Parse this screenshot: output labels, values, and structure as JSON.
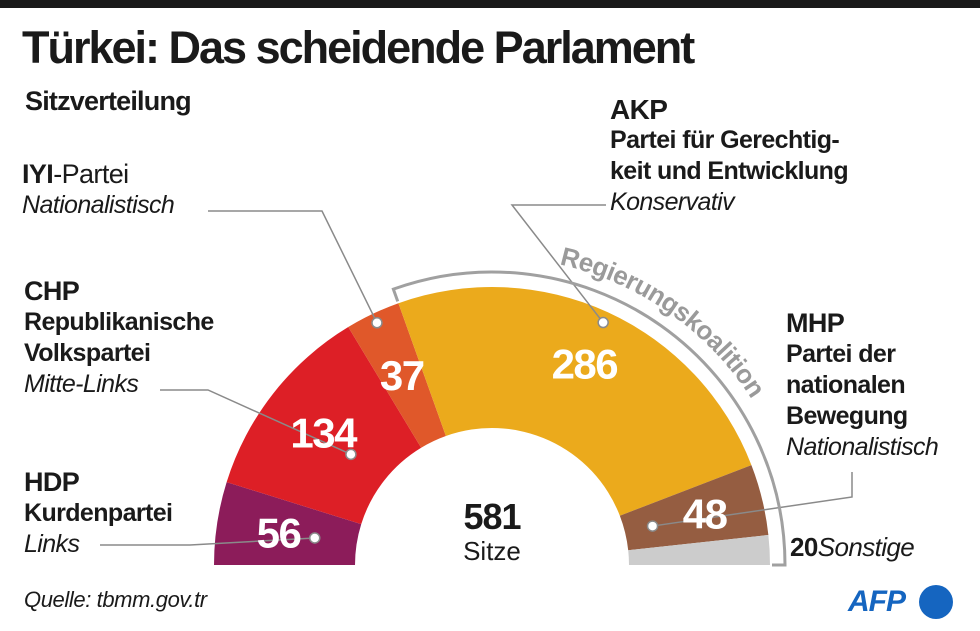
{
  "title": "Türkei: Das scheidende Parlament",
  "subtitle": "Sitzverteilung",
  "colors": {
    "HDP": "#8c1c5a",
    "CHP": "#dd1f26",
    "IYI": "#e0582a",
    "AKP": "#ebaa1c",
    "MHP": "#955d41",
    "Sonstige": "#cccccc",
    "leader": "#8a8a8a",
    "afp": "#1565c0"
  },
  "total": {
    "value": "581",
    "label": "Sitze"
  },
  "coalition_label": "Regierungskoalition",
  "parties": {
    "AKP": {
      "abbr": "AKP",
      "name_line1": "Partei für Gerechtig-",
      "name_line2": "keit und Entwicklung",
      "orientation": "Konservativ"
    },
    "IYI": {
      "abbr": "IYI",
      "name": "-Partei",
      "orientation": "Nationalistisch"
    },
    "CHP": {
      "abbr": "CHP",
      "name_line1": "Republikanische",
      "name_line2": "Volkspartei",
      "orientation": "Mitte-Links"
    },
    "HDP": {
      "abbr": "HDP",
      "name": "Kurdenpartei",
      "orientation": "Links"
    },
    "MHP": {
      "abbr": "MHP",
      "name_line1": "Partei der",
      "name_line2": "nationalen",
      "name_line3": "Bewegung",
      "orientation": "Nationalistisch"
    },
    "Sonstige": {
      "value": "20",
      "name": "Sonstige"
    }
  },
  "chart_data": {
    "type": "pie",
    "title": "Türkei: Das scheidende Parlament",
    "subtitle": "Sitzverteilung",
    "categories": [
      "HDP",
      "CHP",
      "IYI",
      "AKP",
      "MHP",
      "Sonstige"
    ],
    "values": [
      56,
      134,
      37,
      286,
      48,
      20
    ],
    "value_labels": [
      "56",
      "134",
      "37",
      "286",
      "48",
      "20"
    ],
    "total": 581
  },
  "source": "Quelle: tbmm.gov.tr",
  "logo": "AFP"
}
